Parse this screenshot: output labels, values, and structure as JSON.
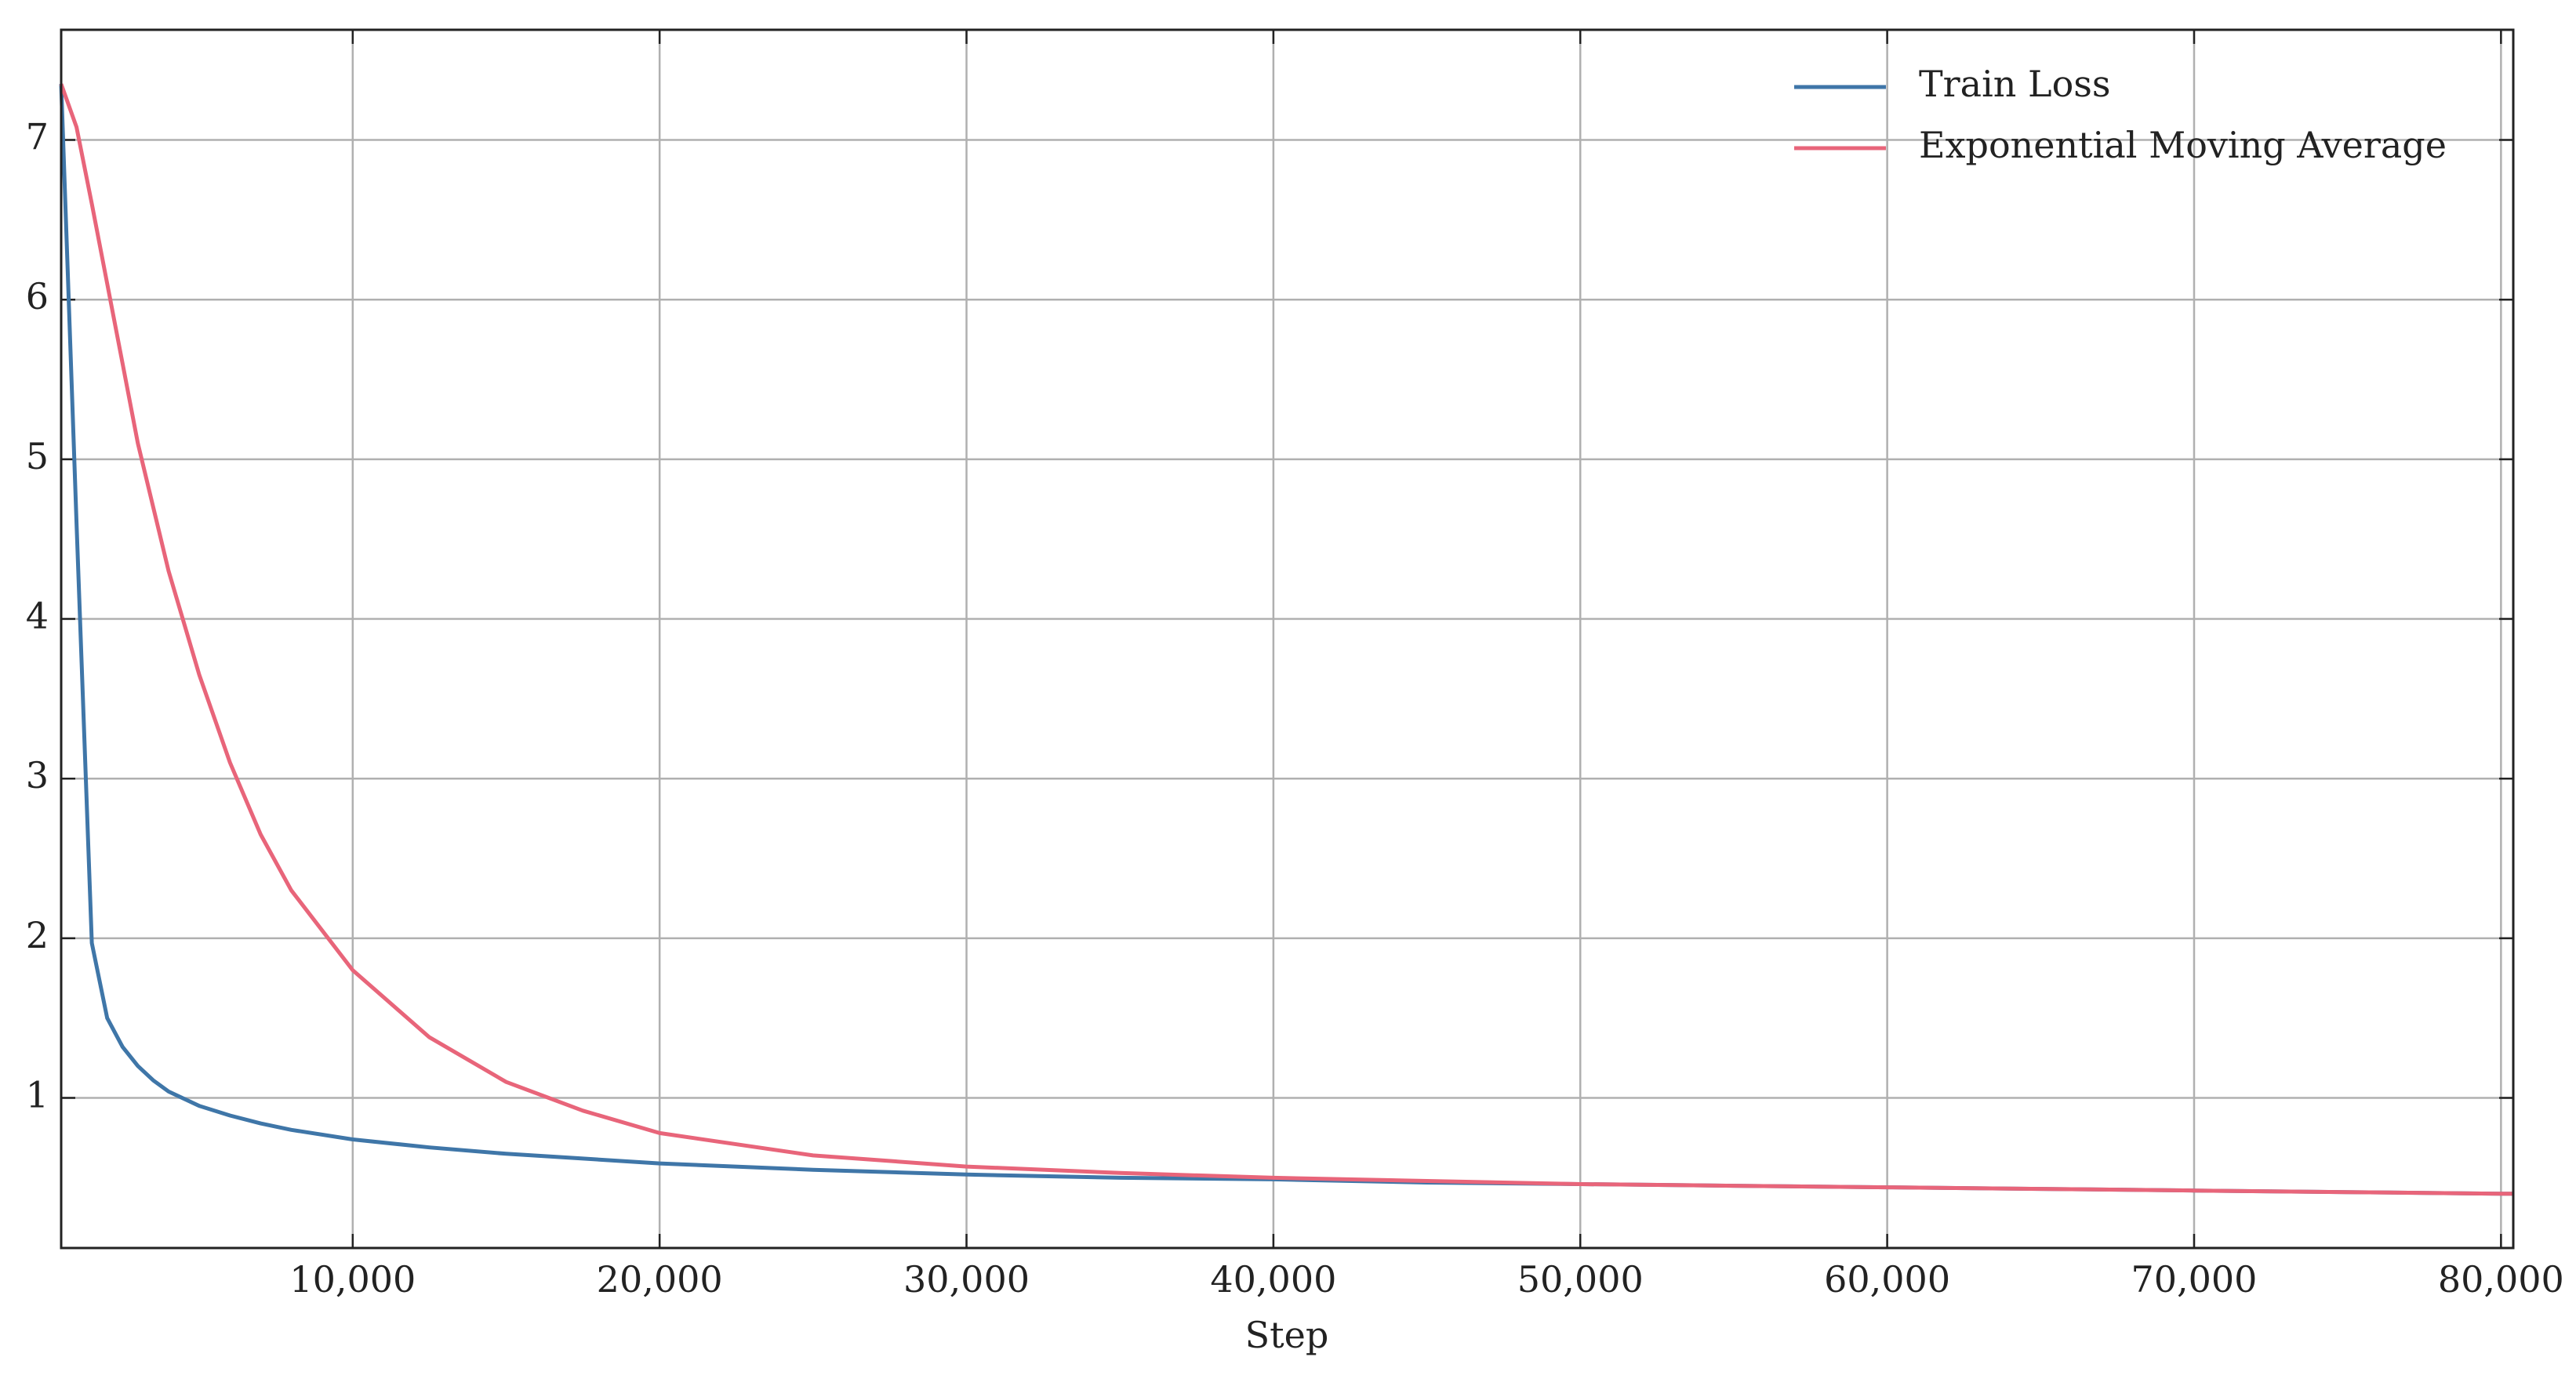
{
  "chart_data": {
    "type": "line",
    "xlabel": "Step",
    "x": [
      500,
      1000,
      1500,
      2000,
      2500,
      3000,
      3500,
      4000,
      5000,
      6000,
      7000,
      8000,
      10000,
      12500,
      15000,
      17500,
      20000,
      25000,
      30000,
      35000,
      40000,
      45000,
      50000,
      55000,
      60000,
      65000,
      70000,
      75000,
      80000,
      80400
    ],
    "series": [
      {
        "name": "Train Loss",
        "color": "#3f76a8",
        "values": [
          7.35,
          4.6,
          1.97,
          1.5,
          1.32,
          1.2,
          1.11,
          1.04,
          0.95,
          0.89,
          0.84,
          0.8,
          0.74,
          0.69,
          0.65,
          0.62,
          0.59,
          0.55,
          0.52,
          0.5,
          0.49,
          0.47,
          0.46,
          0.45,
          0.44,
          0.43,
          0.42,
          0.41,
          0.4,
          0.4
        ]
      },
      {
        "name": "Exponential Moving Average",
        "color": "#e8657a",
        "values": [
          7.35,
          7.08,
          6.6,
          6.1,
          5.6,
          5.1,
          4.7,
          4.3,
          3.65,
          3.1,
          2.65,
          2.3,
          1.8,
          1.38,
          1.1,
          0.92,
          0.78,
          0.64,
          0.57,
          0.53,
          0.5,
          0.48,
          0.46,
          0.45,
          0.44,
          0.43,
          0.42,
          0.41,
          0.4,
          0.4
        ]
      }
    ],
    "xlim": [
      500,
      80400
    ],
    "ylim": [
      0.06,
      7.69
    ],
    "xticks": [
      {
        "value": 10000,
        "label": "10,000"
      },
      {
        "value": 20000,
        "label": "20,000"
      },
      {
        "value": 30000,
        "label": "30,000"
      },
      {
        "value": 40000,
        "label": "40,000"
      },
      {
        "value": 50000,
        "label": "50,000"
      },
      {
        "value": 60000,
        "label": "60,000"
      },
      {
        "value": 70000,
        "label": "70,000"
      },
      {
        "value": 80000,
        "label": "80,000"
      }
    ],
    "yticks": [
      1,
      2,
      3,
      4,
      5,
      6,
      7
    ],
    "grid": true,
    "legend": "upper right"
  }
}
